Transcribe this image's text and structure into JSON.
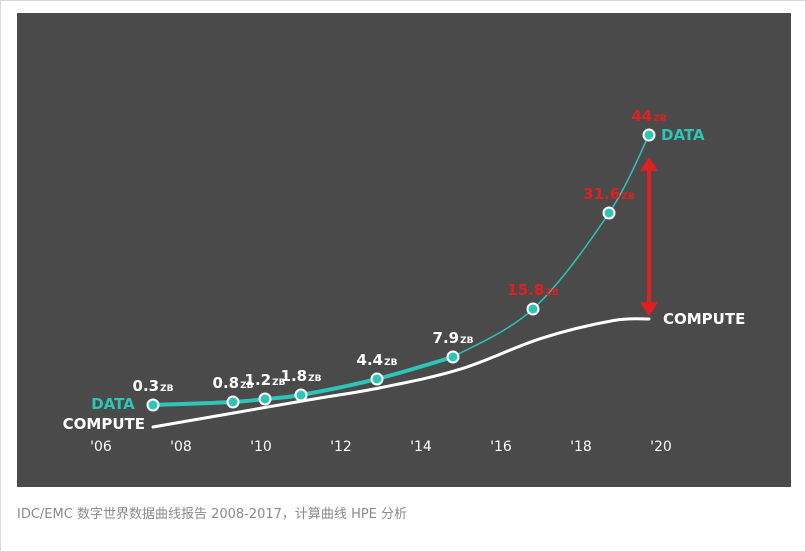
{
  "caption": "IDC/EMC 数字世界数据曲线报告 2008-2017，计算曲线 HPE 分析",
  "colors": {
    "background": "#4a4a4a",
    "data_line": "#2ec4b6",
    "compute_line": "#ffffff",
    "highlight_label": "#e02020",
    "arrow": "#e02020",
    "tick_text": "#ffffff"
  },
  "chart_data": {
    "type": "line",
    "xlim": [
      2006,
      2020
    ],
    "x_ticks": [
      "'06",
      "'08",
      "'10",
      "'12",
      "'14",
      "'16",
      "'18",
      "'20"
    ],
    "grid": false,
    "series": [
      {
        "name": "DATA",
        "unit": "ZB",
        "points": [
          {
            "x": 2007.3,
            "y": 0.3,
            "label": "0.3",
            "unit": "ZB",
            "highlight": false
          },
          {
            "x": 2009.3,
            "y": 0.8,
            "label": "0.8",
            "unit": "ZB",
            "highlight": false
          },
          {
            "x": 2010.1,
            "y": 1.2,
            "label": "1.2",
            "unit": "ZB",
            "highlight": false
          },
          {
            "x": 2011.0,
            "y": 1.8,
            "label": "1.8",
            "unit": "ZB",
            "highlight": false
          },
          {
            "x": 2012.9,
            "y": 4.4,
            "label": "4.4",
            "unit": "ZB",
            "highlight": false
          },
          {
            "x": 2014.8,
            "y": 7.9,
            "label": "7.9",
            "unit": "ZB",
            "highlight": false
          },
          {
            "x": 2016.8,
            "y": 15.8,
            "label": "15.8",
            "unit": "ZB",
            "highlight": true
          },
          {
            "x": 2018.7,
            "y": 31.6,
            "label": "31.6",
            "unit": "ZB",
            "highlight": true
          },
          {
            "x": 2019.7,
            "y": 44,
            "label": "44",
            "unit": "ZB",
            "highlight": true
          }
        ],
        "labels": {
          "start": "DATA",
          "end": "DATA"
        }
      },
      {
        "name": "COMPUTE",
        "points": [
          {
            "x": 2007.3,
            "y": 0.0
          },
          {
            "x": 2011.0,
            "y": 0.9
          },
          {
            "x": 2013.0,
            "y": 3.0
          },
          {
            "x": 2015.0,
            "y": 6.0
          },
          {
            "x": 2017.0,
            "y": 10.2
          },
          {
            "x": 2018.8,
            "y": 12.4
          },
          {
            "x": 2019.7,
            "y": 12.6
          }
        ],
        "labels": {
          "start": "COMPUTE",
          "end": "COMPUTE"
        }
      }
    ],
    "annotations": [
      {
        "type": "double-arrow",
        "x": 2019.7,
        "y_from": 13.5,
        "y_to": 40.5,
        "meaning": "gap between DATA and COMPUTE"
      }
    ]
  }
}
